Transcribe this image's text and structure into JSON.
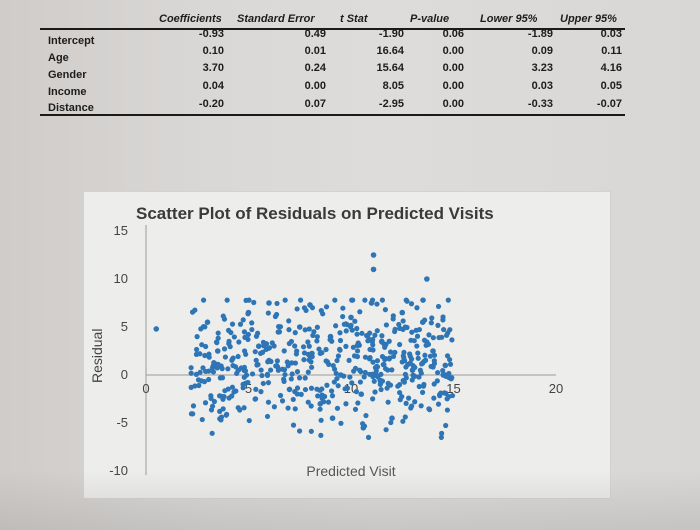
{
  "table": {
    "headers": [
      "Coefficients",
      "Standard Error",
      "t Stat",
      "P-value",
      "Lower 95%",
      "Upper 95%"
    ],
    "rows": [
      {
        "label": "Intercept",
        "values": [
          "-0.93",
          "0.49",
          "-1.90",
          "0.06",
          "-1.89",
          "0.03"
        ]
      },
      {
        "label": "Age",
        "values": [
          "0.10",
          "0.01",
          "16.64",
          "0.00",
          "0.09",
          "0.11"
        ]
      },
      {
        "label": "Gender",
        "values": [
          "3.70",
          "0.24",
          "15.64",
          "0.00",
          "3.23",
          "4.16"
        ]
      },
      {
        "label": "Income",
        "values": [
          "0.04",
          "0.00",
          "8.05",
          "0.00",
          "0.03",
          "0.05"
        ]
      },
      {
        "label": "Distance",
        "values": [
          "-0.20",
          "0.07",
          "-2.95",
          "0.00",
          "-0.33",
          "-0.07"
        ]
      }
    ]
  },
  "chart_data": {
    "type": "scatter",
    "title": "Scatter Plot of Residuals on Predicted Visits",
    "xlabel": "Predicted Visit",
    "ylabel": "Residual",
    "xlim": [
      0,
      20
    ],
    "ylim": [
      -10,
      15
    ],
    "x_ticks": [
      "0",
      "5",
      "10",
      "15",
      "20"
    ],
    "y_ticks": [
      "15",
      "10",
      "5",
      "0",
      "-5",
      "-10"
    ],
    "series_color": "#2e75b6",
    "grid": false,
    "legend": "none",
    "sampled_points": {
      "x": [
        0.5,
        3.0,
        3.5,
        4.5,
        5.0,
        5.5,
        6.0,
        6.5,
        7.0,
        7.5,
        8.0,
        8.5,
        9.0,
        9.5,
        10.0,
        10.5,
        11.0,
        11.5,
        12.0,
        12.5,
        13.0,
        13.5,
        14.0,
        14.5,
        11.1,
        11.1,
        13.7,
        14.6,
        9.1,
        10.6,
        6.0,
        8.0
      ],
      "y": [
        4.8,
        5.5,
        2.5,
        0.5,
        6.5,
        3.0,
        1.5,
        4.5,
        -1.5,
        5.0,
        2.0,
        -3.0,
        4.0,
        0.0,
        6.0,
        -2.0,
        7.5,
        3.5,
        -4.5,
        6.5,
        0.5,
        5.5,
        2.5,
        0.0,
        12.5,
        11.0,
        10.0,
        1.0,
        -4.5,
        -5.5,
        7.5,
        7.3
      ]
    }
  }
}
